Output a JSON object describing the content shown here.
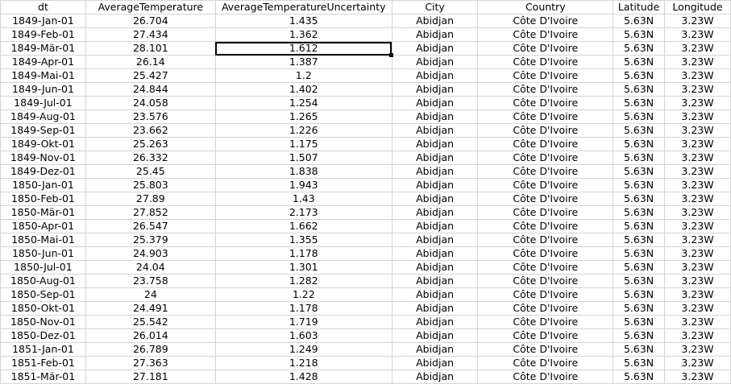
{
  "columns": [
    "dt",
    "AverageTemperature",
    "AverageTemperatureUncertainty",
    "City",
    "Country",
    "Latitude",
    "Longitude"
  ],
  "rows": [
    [
      "1849-Jan-01",
      "26.704",
      "1.435",
      "Abidjan",
      "Côte D'Ivoire",
      "5.63N",
      "3.23W"
    ],
    [
      "1849-Feb-01",
      "27.434",
      "1.362",
      "Abidjan",
      "Côte D'Ivoire",
      "5.63N",
      "3.23W"
    ],
    [
      "1849-Mär-01",
      "28.101",
      "1.612",
      "Abidjan",
      "Côte D'Ivoire",
      "5.63N",
      "3.23W"
    ],
    [
      "1849-Apr-01",
      "26.14",
      "1.387",
      "Abidjan",
      "Côte D'Ivoire",
      "5.63N",
      "3.23W"
    ],
    [
      "1849-Mai-01",
      "25.427",
      "1.2",
      "Abidjan",
      "Côte D'Ivoire",
      "5.63N",
      "3.23W"
    ],
    [
      "1849-Jun-01",
      "24.844",
      "1.402",
      "Abidjan",
      "Côte D'Ivoire",
      "5.63N",
      "3.23W"
    ],
    [
      "1849-Jul-01",
      "24.058",
      "1.254",
      "Abidjan",
      "Côte D'Ivoire",
      "5.63N",
      "3.23W"
    ],
    [
      "1849-Aug-01",
      "23.576",
      "1.265",
      "Abidjan",
      "Côte D'Ivoire",
      "5.63N",
      "3.23W"
    ],
    [
      "1849-Sep-01",
      "23.662",
      "1.226",
      "Abidjan",
      "Côte D'Ivoire",
      "5.63N",
      "3.23W"
    ],
    [
      "1849-Okt-01",
      "25.263",
      "1.175",
      "Abidjan",
      "Côte D'Ivoire",
      "5.63N",
      "3.23W"
    ],
    [
      "1849-Nov-01",
      "26.332",
      "1.507",
      "Abidjan",
      "Côte D'Ivoire",
      "5.63N",
      "3.23W"
    ],
    [
      "1849-Dez-01",
      "25.45",
      "1.838",
      "Abidjan",
      "Côte D'Ivoire",
      "5.63N",
      "3.23W"
    ],
    [
      "1850-Jan-01",
      "25.803",
      "1.943",
      "Abidjan",
      "Côte D'Ivoire",
      "5.63N",
      "3.23W"
    ],
    [
      "1850-Feb-01",
      "27.89",
      "1.43",
      "Abidjan",
      "Côte D'Ivoire",
      "5.63N",
      "3.23W"
    ],
    [
      "1850-Mär-01",
      "27.852",
      "2.173",
      "Abidjan",
      "Côte D'Ivoire",
      "5.63N",
      "3.23W"
    ],
    [
      "1850-Apr-01",
      "26.547",
      "1.662",
      "Abidjan",
      "Côte D'Ivoire",
      "5.63N",
      "3.23W"
    ],
    [
      "1850-Mai-01",
      "25.379",
      "1.355",
      "Abidjan",
      "Côte D'Ivoire",
      "5.63N",
      "3.23W"
    ],
    [
      "1850-Jun-01",
      "24.903",
      "1.178",
      "Abidjan",
      "Côte D'Ivoire",
      "5.63N",
      "3.23W"
    ],
    [
      "1850-Jul-01",
      "24.04",
      "1.301",
      "Abidjan",
      "Côte D'Ivoire",
      "5.63N",
      "3.23W"
    ],
    [
      "1850-Aug-01",
      "23.758",
      "1.282",
      "Abidjan",
      "Côte D'Ivoire",
      "5.63N",
      "3.23W"
    ],
    [
      "1850-Sep-01",
      "24",
      "1.22",
      "Abidjan",
      "Côte D'Ivoire",
      "5.63N",
      "3.23W"
    ],
    [
      "1850-Okt-01",
      "24.491",
      "1.178",
      "Abidjan",
      "Côte D'Ivoire",
      "5.63N",
      "3.23W"
    ],
    [
      "1850-Nov-01",
      "25.542",
      "1.719",
      "Abidjan",
      "Côte D'Ivoire",
      "5.63N",
      "3.23W"
    ],
    [
      "1850-Dez-01",
      "26.014",
      "1.603",
      "Abidjan",
      "Côte D'Ivoire",
      "5.63N",
      "3.23W"
    ],
    [
      "1851-Jan-01",
      "26.789",
      "1.249",
      "Abidjan",
      "Côte D'Ivoire",
      "5.63N",
      "3.23W"
    ],
    [
      "1851-Feb-01",
      "27.363",
      "1.218",
      "Abidjan",
      "Côte D'Ivoire",
      "5.63N",
      "3.23W"
    ],
    [
      "1851-Mär-01",
      "27.181",
      "1.428",
      "Abidjan",
      "Côte D'Ivoire",
      "5.63N",
      "3.23W"
    ]
  ],
  "selected_cell": {
    "row": 2,
    "col": 2
  },
  "colors": {
    "grid": "#d4d4d4",
    "selection": "#000000"
  }
}
